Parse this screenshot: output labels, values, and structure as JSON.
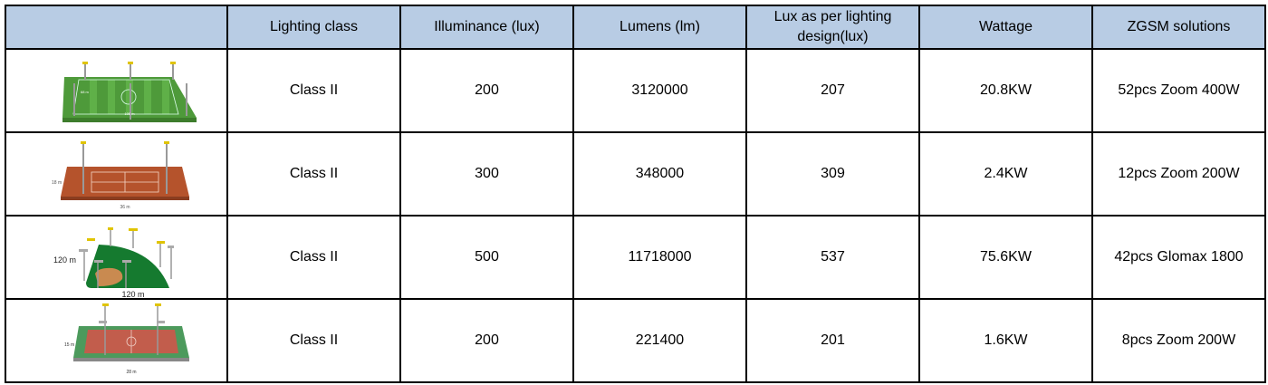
{
  "header": {
    "columns": [
      "",
      "Lighting class",
      "Illuminance (lux)",
      "Lumens (lm)",
      "Lux as per lighting design(lux)",
      "Wattage",
      "ZGSM solutions"
    ]
  },
  "rows": [
    {
      "image": "football-field-image",
      "image_labels": {
        "width": "105 m",
        "height": "68 m"
      },
      "lighting_class": "Class II",
      "illuminance": "200",
      "lumens": "3120000",
      "lux_design": "207",
      "wattage": "20.8KW",
      "solution": "52pcs Zoom 400W"
    },
    {
      "image": "tennis-court-image",
      "image_labels": {
        "width": "36 m",
        "height": "18 m"
      },
      "lighting_class": "Class II",
      "illuminance": "300",
      "lumens": "348000",
      "lux_design": "309",
      "wattage": "2.4KW",
      "solution": "12pcs  Zoom 200W"
    },
    {
      "image": "baseball-field-image",
      "image_labels": {
        "width": "120 m",
        "height": "120 m"
      },
      "lighting_class": "Class II",
      "illuminance": "500",
      "lumens": "11718000",
      "lux_design": "537",
      "wattage": "75.6KW",
      "solution": "42pcs Glomax 1800"
    },
    {
      "image": "basketball-court-image",
      "image_labels": {
        "width": "28 m",
        "height": "15 m"
      },
      "lighting_class": "Class II",
      "illuminance": "200",
      "lumens": "221400",
      "lux_design": "201",
      "wattage": "1.6KW",
      "solution": "8pcs Zoom 200W"
    }
  ],
  "colors": {
    "header_bg": "#b8cce4",
    "border": "#000000"
  }
}
